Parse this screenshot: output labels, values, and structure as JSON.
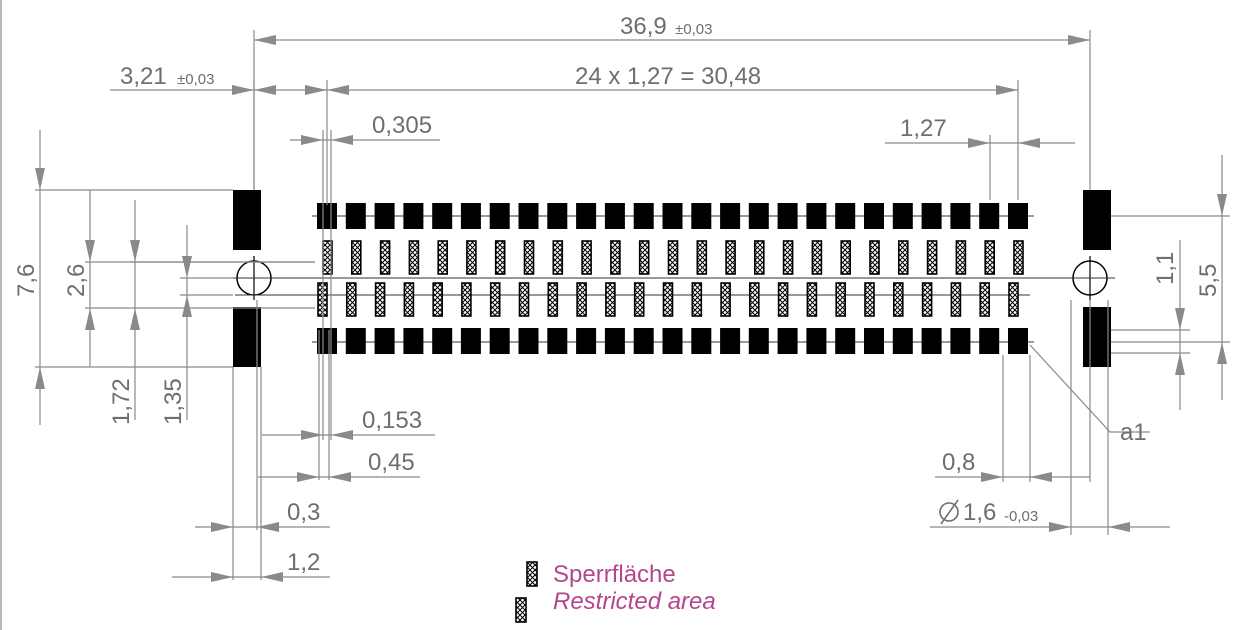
{
  "dimensions": {
    "overall_width": "36,9",
    "overall_width_tol": "±0,03",
    "hole_offset": "3,21",
    "hole_offset_tol": "±0,03",
    "pitch_total": "24 x 1,27 = 30,48",
    "restricted_width": "0,305",
    "pitch": "1,27",
    "total_height": "7,6",
    "inner_height": "2,6",
    "pad_row_spacing": "1,72",
    "hole_row_spacing": "1,35",
    "restricted_offset": "0,153",
    "pad_width": "0,45",
    "slot_width": "0,3",
    "slot_pad_width": "1,2",
    "hole_gap": "0,8",
    "hole_diameter": "1,6",
    "hole_diameter_tol": "-0,03",
    "right_height_small": "1,1",
    "right_height_large": "5,5",
    "pin_label": "a1"
  },
  "legend": {
    "de": "Sperrfläche",
    "en": "Restricted area"
  },
  "colors": {
    "dimension": "#6e6e6e",
    "legend": "#b4468e",
    "pad": "#000000"
  }
}
